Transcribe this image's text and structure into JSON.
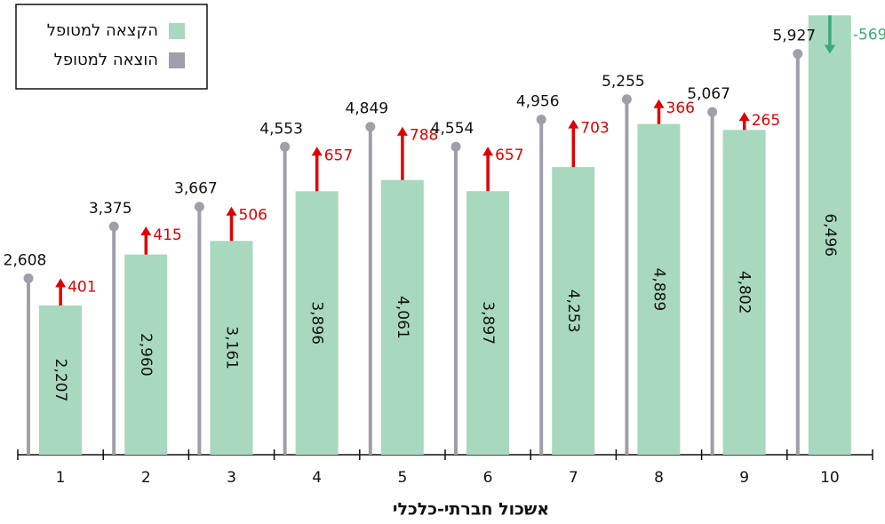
{
  "chart_data": {
    "type": "bar-lollipop",
    "x_label": "אשכול חברתי-כלכלי",
    "categories": [
      "1",
      "2",
      "3",
      "4",
      "5",
      "6",
      "7",
      "8",
      "9",
      "10"
    ],
    "series": [
      {
        "name": "הקצאה למטופל",
        "color": "#a8d8bd",
        "values": [
          2207,
          2960,
          3161,
          3896,
          4061,
          3897,
          4253,
          4889,
          4802,
          6496
        ],
        "value_labels": [
          "2,207",
          "2,960",
          "3,161",
          "3,896",
          "4,061",
          "3,897",
          "4,253",
          "4,889",
          "4,802",
          "6,496"
        ]
      },
      {
        "name": "הוצאה למטופל",
        "color": "#a09ea8",
        "values": [
          2608,
          3375,
          3667,
          4553,
          4849,
          4554,
          4956,
          5255,
          5067,
          5927
        ],
        "value_labels": [
          "2,608",
          "3,375",
          "3,667",
          "4,553",
          "4,849",
          "4,554",
          "4,956",
          "5,255",
          "5,067",
          "5,927"
        ]
      }
    ],
    "differences": {
      "values": [
        401,
        415,
        506,
        657,
        788,
        657,
        703,
        366,
        265,
        -569
      ],
      "color_increase": "#e00000",
      "color_decrease": "#3aaa77"
    },
    "ylim": [
      0,
      6500
    ]
  }
}
